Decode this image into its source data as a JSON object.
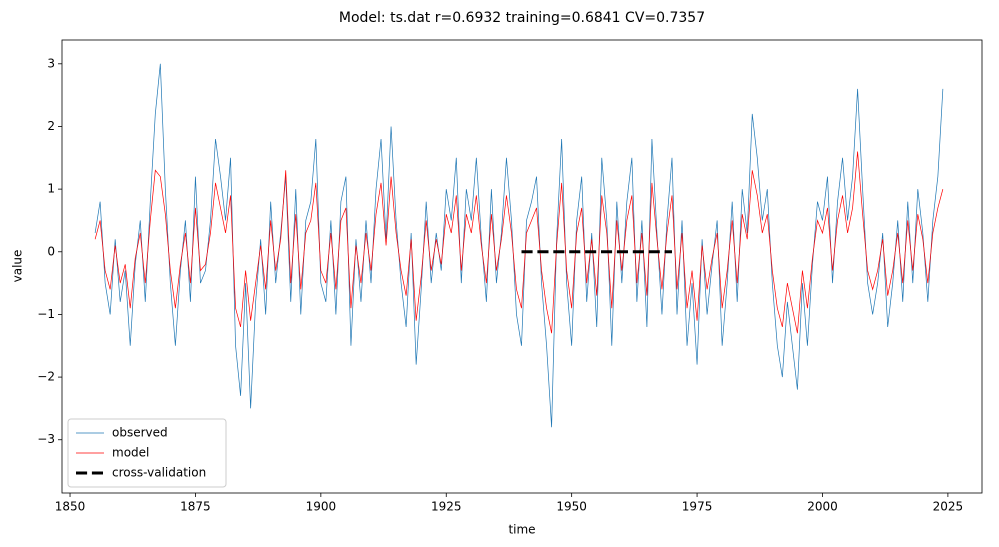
{
  "chart_data": {
    "type": "line",
    "title": "Model: ts.dat  r=0.6932  training=0.6841  CV=0.7357",
    "x_label": "time",
    "y_label": "value",
    "x": [
      1855,
      1856,
      1857,
      1858,
      1859,
      1860,
      1861,
      1862,
      1863,
      1864,
      1865,
      1866,
      1867,
      1868,
      1869,
      1870,
      1871,
      1872,
      1873,
      1874,
      1875,
      1876,
      1877,
      1878,
      1879,
      1880,
      1881,
      1882,
      1883,
      1884,
      1885,
      1886,
      1887,
      1888,
      1889,
      1890,
      1891,
      1892,
      1893,
      1894,
      1895,
      1896,
      1897,
      1898,
      1899,
      1900,
      1901,
      1902,
      1903,
      1904,
      1905,
      1906,
      1907,
      1908,
      1909,
      1910,
      1911,
      1912,
      1913,
      1914,
      1915,
      1916,
      1917,
      1918,
      1919,
      1920,
      1921,
      1922,
      1923,
      1924,
      1925,
      1926,
      1927,
      1928,
      1929,
      1930,
      1931,
      1932,
      1933,
      1934,
      1935,
      1936,
      1937,
      1938,
      1939,
      1940,
      1941,
      1942,
      1943,
      1944,
      1945,
      1946,
      1947,
      1948,
      1949,
      1950,
      1951,
      1952,
      1953,
      1954,
      1955,
      1956,
      1957,
      1958,
      1959,
      1960,
      1961,
      1962,
      1963,
      1964,
      1965,
      1966,
      1967,
      1968,
      1969,
      1970,
      1971,
      1972,
      1973,
      1974,
      1975,
      1976,
      1977,
      1978,
      1979,
      1980,
      1981,
      1982,
      1983,
      1984,
      1985,
      1986,
      1987,
      1988,
      1989,
      1990,
      1991,
      1992,
      1993,
      1994,
      1995,
      1996,
      1997,
      1998,
      1999,
      2000,
      2001,
      2002,
      2003,
      2004,
      2005,
      2006,
      2007,
      2008,
      2009,
      2010,
      2011,
      2012,
      2013,
      2014,
      2015,
      2016,
      2017,
      2018,
      2019,
      2020,
      2021,
      2022,
      2023,
      2024
    ],
    "series": [
      {
        "name": "observed",
        "color": "#1f77b4",
        "width": 0.7,
        "dash": "solid",
        "values": [
          0.3,
          0.8,
          -0.5,
          -1.0,
          0.2,
          -0.8,
          -0.3,
          -1.5,
          -0.2,
          0.5,
          -0.8,
          0.8,
          2.2,
          3.0,
          1.0,
          -0.5,
          -1.5,
          -0.3,
          0.5,
          -0.8,
          1.2,
          -0.5,
          -0.3,
          0.5,
          1.8,
          1.2,
          0.5,
          1.5,
          -1.5,
          -2.3,
          -0.5,
          -2.5,
          -0.8,
          0.2,
          -1.0,
          0.8,
          -0.5,
          0.3,
          1.2,
          -0.8,
          1.0,
          -1.0,
          0.5,
          0.8,
          1.8,
          -0.5,
          -0.8,
          0.5,
          -1.0,
          0.8,
          1.2,
          -1.5,
          0.2,
          -0.8,
          0.5,
          -0.5,
          1.0,
          1.8,
          0.2,
          2.0,
          0.5,
          -0.5,
          -1.2,
          0.3,
          -1.8,
          -0.6,
          0.8,
          -0.5,
          0.3,
          -0.3,
          1.0,
          0.5,
          1.5,
          -0.5,
          1.0,
          0.5,
          1.5,
          0.2,
          -0.8,
          1.0,
          -0.5,
          0.3,
          1.5,
          0.5,
          -1.0,
          -1.5,
          0.5,
          0.8,
          1.2,
          -0.5,
          -1.5,
          -2.8,
          0.2,
          1.8,
          -0.5,
          -1.5,
          0.5,
          1.2,
          -0.8,
          0.3,
          -1.2,
          1.5,
          0.5,
          -1.5,
          0.8,
          -0.5,
          0.8,
          1.5,
          -0.8,
          0.5,
          -1.2,
          1.8,
          0.3,
          -1.0,
          0.5,
          1.5,
          -1.0,
          0.5,
          -1.5,
          -0.5,
          -1.8,
          0.2,
          -1.0,
          -0.2,
          0.5,
          -1.5,
          -0.5,
          0.8,
          -0.8,
          1.0,
          0.3,
          2.2,
          1.5,
          0.5,
          1.0,
          -0.5,
          -1.5,
          -2.0,
          -0.8,
          -1.5,
          -2.2,
          -0.5,
          -1.5,
          -0.2,
          0.8,
          0.5,
          1.2,
          -0.5,
          0.8,
          1.5,
          0.5,
          1.2,
          2.6,
          1.0,
          -0.5,
          -1.0,
          -0.5,
          0.3,
          -1.2,
          -0.5,
          0.5,
          -0.8,
          0.8,
          -0.5,
          1.0,
          0.3,
          -0.8,
          0.5,
          1.2,
          2.6
        ]
      },
      {
        "name": "model",
        "color": "#ff0000",
        "width": 0.7,
        "dash": "solid",
        "values": [
          0.2,
          0.5,
          -0.3,
          -0.6,
          0.1,
          -0.5,
          -0.2,
          -0.9,
          -0.1,
          0.3,
          -0.5,
          0.5,
          1.3,
          1.2,
          0.6,
          -0.3,
          -0.9,
          -0.2,
          0.3,
          -0.5,
          0.7,
          -0.3,
          -0.2,
          0.3,
          1.1,
          0.7,
          0.3,
          0.9,
          -0.9,
          -1.2,
          -0.3,
          -1.1,
          -0.5,
          0.1,
          -0.6,
          0.5,
          -0.3,
          0.2,
          1.3,
          -0.5,
          0.6,
          -0.6,
          0.3,
          0.5,
          1.1,
          -0.3,
          -0.5,
          0.3,
          -0.6,
          0.5,
          0.7,
          -0.9,
          0.1,
          -0.5,
          0.3,
          -0.3,
          0.6,
          1.1,
          0.1,
          1.2,
          0.3,
          -0.3,
          -0.7,
          0.2,
          -1.1,
          -0.4,
          0.5,
          -0.3,
          0.2,
          -0.2,
          0.6,
          0.3,
          0.9,
          -0.3,
          0.6,
          0.3,
          0.9,
          0.1,
          -0.5,
          0.6,
          -0.3,
          0.2,
          0.9,
          0.3,
          -0.6,
          -0.9,
          0.3,
          0.5,
          0.7,
          -0.3,
          -0.9,
          -1.3,
          0.1,
          1.1,
          -0.3,
          -0.9,
          0.3,
          0.7,
          -0.5,
          0.2,
          -0.7,
          0.9,
          0.3,
          -0.9,
          0.5,
          -0.3,
          0.5,
          0.9,
          -0.5,
          0.3,
          -0.7,
          1.1,
          0.2,
          -0.6,
          0.3,
          0.9,
          -0.6,
          0.3,
          -0.9,
          -0.3,
          -1.1,
          0.1,
          -0.6,
          -0.1,
          0.3,
          -0.9,
          -0.3,
          0.5,
          -0.5,
          0.6,
          0.2,
          1.3,
          0.9,
          0.3,
          0.6,
          -0.3,
          -0.9,
          -1.2,
          -0.5,
          -0.9,
          -1.3,
          -0.3,
          -0.9,
          -0.1,
          0.5,
          0.3,
          0.7,
          -0.3,
          0.5,
          0.9,
          0.3,
          0.7,
          1.6,
          0.6,
          -0.3,
          -0.6,
          -0.3,
          0.2,
          -0.7,
          -0.3,
          0.3,
          -0.5,
          0.5,
          -0.3,
          0.6,
          0.2,
          -0.5,
          0.3,
          0.7,
          1.0
        ]
      },
      {
        "name": "cross-validation",
        "color": "#000000",
        "width": 3,
        "dash": "dashed",
        "x": [
          1940,
          1970
        ],
        "values": [
          0,
          0
        ]
      }
    ],
    "xlim": [
      1848.4,
      2031.8
    ],
    "ylim": [
      -3.85,
      3.38
    ],
    "xticks": [
      1850,
      1875,
      1900,
      1925,
      1950,
      1975,
      2000,
      2025
    ],
    "yticks": [
      {
        "value": -3,
        "label": "−3"
      },
      {
        "value": -2,
        "label": "−2"
      },
      {
        "value": -1,
        "label": "−1"
      },
      0,
      1,
      2,
      3
    ],
    "grid": false,
    "legend": "lower left"
  }
}
